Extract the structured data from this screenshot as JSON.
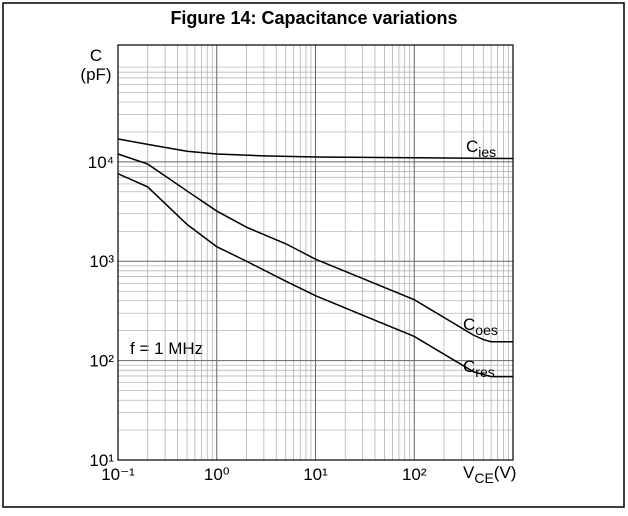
{
  "chart_data": {
    "type": "line",
    "title": "Figure 14: Capacitance variations",
    "ylabel": [
      "C",
      "(pF)"
    ],
    "xlabel": "VCE(V)",
    "annotation": "f = 1 MHz",
    "xscale": "log",
    "yscale": "log",
    "grid": true,
    "minor_grid": true,
    "xlim": [
      0.1,
      1000
    ],
    "ylim": [
      10,
      150000
    ],
    "xticks": [
      {
        "value": 0.1,
        "label": "10⁻¹"
      },
      {
        "value": 1,
        "label": "10⁰"
      },
      {
        "value": 10,
        "label": "10¹"
      },
      {
        "value": 100,
        "label": "10²"
      }
    ],
    "yticks": [
      {
        "value": 10,
        "label": "10¹"
      },
      {
        "value": 100,
        "label": "10²"
      },
      {
        "value": 1000,
        "label": "10³"
      },
      {
        "value": 10000,
        "label": "10⁴"
      }
    ],
    "series": [
      {
        "name": "Cies",
        "color": "#000000",
        "x": [
          0.1,
          0.2,
          0.5,
          1,
          3,
          10,
          100,
          1000
        ],
        "values": [
          17000,
          15000,
          12800,
          12000,
          11500,
          11200,
          11000,
          10800
        ]
      },
      {
        "name": "Coes",
        "color": "#000000",
        "x": [
          0.1,
          0.2,
          0.5,
          1,
          2,
          5,
          10,
          100,
          400,
          500,
          600,
          1000
        ],
        "values": [
          12000,
          9500,
          5100,
          3200,
          2200,
          1500,
          1050,
          410,
          180,
          163,
          155,
          155
        ]
      },
      {
        "name": "Cres",
        "color": "#000000",
        "x": [
          0.1,
          0.2,
          0.5,
          1,
          2,
          5,
          10,
          100,
          400,
          600,
          1000
        ],
        "values": [
          7600,
          5600,
          2350,
          1400,
          1000,
          630,
          450,
          175,
          77,
          69,
          69
        ]
      }
    ]
  }
}
